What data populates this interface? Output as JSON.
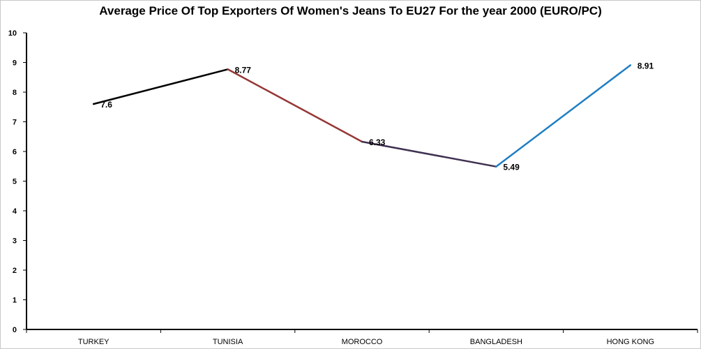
{
  "chart_data": {
    "type": "line",
    "title": "Average Price Of Top Exporters Of Women's Jeans To EU27 For the year 2000 (EURO/PC)",
    "xlabel": "",
    "ylabel": "",
    "categories": [
      "TURKEY",
      "TUNISIA",
      "MOROCCO",
      "BANGLADESH",
      "HONG KONG"
    ],
    "values": [
      7.6,
      8.77,
      6.33,
      5.49,
      8.91
    ],
    "data_labels": [
      "7.6",
      "8.77",
      "6.33",
      "5.49",
      "8.91"
    ],
    "segment_colors": [
      "#000000",
      "#953735",
      "#3f3151",
      "#1f7ec3"
    ],
    "ylim": [
      0,
      10
    ],
    "yticks": [
      "0",
      "1",
      "2",
      "3",
      "4",
      "5",
      "6",
      "7",
      "8",
      "9",
      "10"
    ],
    "grid": false,
    "legend": "none"
  }
}
